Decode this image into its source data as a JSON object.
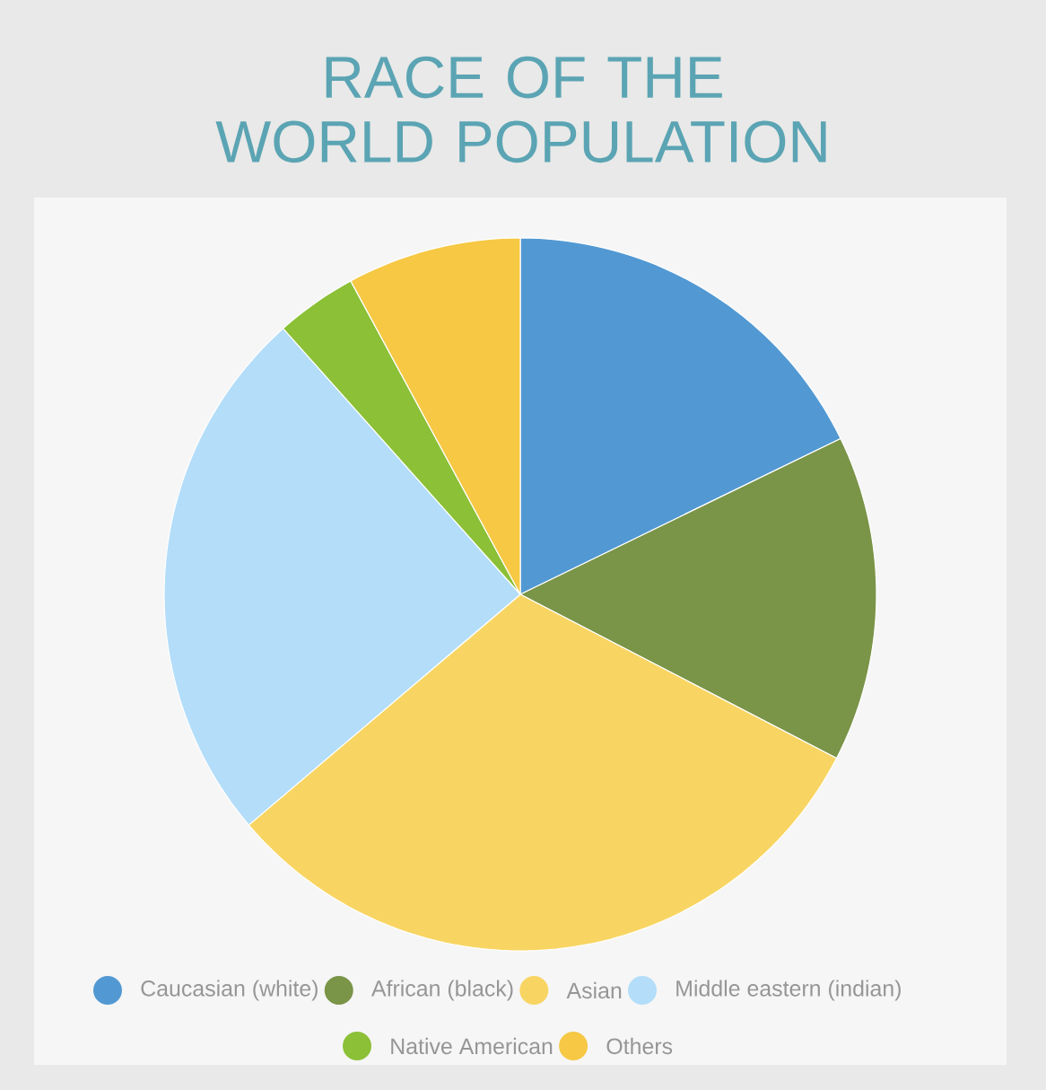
{
  "chart_data": {
    "type": "pie",
    "title": "RACE OF THE WORLD POPULATION",
    "categories": [
      "Caucasian (white)",
      "African (black)",
      "Asian",
      "Middle eastern (indian)",
      "Native American",
      "Others"
    ],
    "values": [
      17.8,
      14.8,
      31.2,
      24.6,
      3.7,
      7.9
    ],
    "colors": [
      "#5299d3",
      "#7a9448",
      "#f8d563",
      "#b3ddf9",
      "#8bc037",
      "#f6c844"
    ],
    "legend": "bottom"
  }
}
